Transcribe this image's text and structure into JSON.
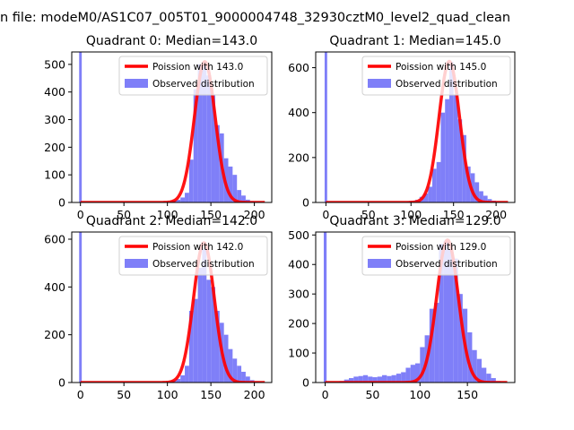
{
  "figure": {
    "suptitle": "n file: modeM0/AS1C07_005T01_9000004748_32930cztM0_level2_quad_clean"
  },
  "colors": {
    "bar": "#7f7ff8",
    "fit_line": "#ff0000",
    "axes": "#000000",
    "background": "#ffffff"
  },
  "chart_data": [
    {
      "type": "bar",
      "title": "Quadrant 0: Median=143.0",
      "xlim": [
        -10,
        220
      ],
      "ylim": [
        0,
        545
      ],
      "xticks": [
        0,
        50,
        100,
        150,
        200
      ],
      "yticks": [
        0,
        100,
        200,
        300,
        400,
        500
      ],
      "bin_width": 5,
      "zero_bin_count": 545,
      "legend": [
        "Poission with 143.0",
        "Observed distribution"
      ],
      "bins": [
        [
          85,
          1
        ],
        [
          90,
          2
        ],
        [
          95,
          3
        ],
        [
          100,
          5
        ],
        [
          105,
          8
        ],
        [
          110,
          10
        ],
        [
          115,
          18
        ],
        [
          120,
          35
        ],
        [
          125,
          155
        ],
        [
          130,
          410
        ],
        [
          135,
          500
        ],
        [
          140,
          510
        ],
        [
          145,
          460
        ],
        [
          150,
          390
        ],
        [
          155,
          280
        ],
        [
          160,
          250
        ],
        [
          165,
          160
        ],
        [
          170,
          130
        ],
        [
          175,
          100
        ],
        [
          180,
          45
        ],
        [
          185,
          25
        ],
        [
          190,
          10
        ],
        [
          195,
          5
        ],
        [
          200,
          2
        ],
        [
          205,
          1
        ]
      ],
      "fit": {
        "mean": 143.0,
        "peak": 510
      }
    },
    {
      "type": "bar",
      "title": "Quadrant 1: Median=145.0",
      "xlim": [
        -12,
        222
      ],
      "ylim": [
        0,
        670
      ],
      "xticks": [
        0,
        50,
        100,
        150,
        200
      ],
      "yticks": [
        0,
        200,
        400,
        600
      ],
      "bin_width": 5,
      "zero_bin_count": 670,
      "legend": [
        "Poission with 145.0",
        "Observed distribution"
      ],
      "bins": [
        [
          90,
          2
        ],
        [
          95,
          5
        ],
        [
          100,
          8
        ],
        [
          105,
          12
        ],
        [
          110,
          25
        ],
        [
          115,
          40
        ],
        [
          120,
          70
        ],
        [
          125,
          150
        ],
        [
          130,
          180
        ],
        [
          135,
          400
        ],
        [
          140,
          460
        ],
        [
          145,
          625
        ],
        [
          150,
          480
        ],
        [
          155,
          370
        ],
        [
          160,
          300
        ],
        [
          165,
          160
        ],
        [
          170,
          130
        ],
        [
          175,
          90
        ],
        [
          180,
          50
        ],
        [
          185,
          30
        ],
        [
          190,
          15
        ],
        [
          195,
          8
        ],
        [
          200,
          4
        ],
        [
          205,
          2
        ],
        [
          210,
          1
        ]
      ],
      "fit": {
        "mean": 145.0,
        "peak": 628
      }
    },
    {
      "type": "bar",
      "title": "Quadrant 2: Median=142.0",
      "xlim": [
        -10,
        220
      ],
      "ylim": [
        0,
        630
      ],
      "xticks": [
        0,
        50,
        100,
        150,
        200
      ],
      "yticks": [
        0,
        200,
        400,
        600
      ],
      "bin_width": 5,
      "zero_bin_count": 630,
      "legend": [
        "Poission with 142.0",
        "Observed distribution"
      ],
      "bins": [
        [
          100,
          3
        ],
        [
          105,
          10
        ],
        [
          110,
          15
        ],
        [
          115,
          30
        ],
        [
          120,
          70
        ],
        [
          125,
          300
        ],
        [
          130,
          350
        ],
        [
          135,
          480
        ],
        [
          140,
          560
        ],
        [
          145,
          430
        ],
        [
          150,
          400
        ],
        [
          155,
          300
        ],
        [
          160,
          250
        ],
        [
          165,
          200
        ],
        [
          170,
          140
        ],
        [
          175,
          100
        ],
        [
          180,
          70
        ],
        [
          185,
          45
        ],
        [
          190,
          25
        ],
        [
          195,
          10
        ],
        [
          200,
          5
        ],
        [
          205,
          2
        ],
        [
          210,
          1
        ]
      ],
      "fit": {
        "mean": 142.0,
        "peak": 585
      }
    },
    {
      "type": "bar",
      "title": "Quadrant 3: Median=129.0",
      "xlim": [
        -10,
        200
      ],
      "ylim": [
        0,
        510
      ],
      "xticks": [
        0,
        50,
        100,
        150
      ],
      "yticks": [
        0,
        100,
        200,
        300,
        400,
        500
      ],
      "bin_width": 5,
      "zero_bin_count": 510,
      "legend": [
        "Poission with 129.0",
        "Observed distribution"
      ],
      "bins": [
        [
          15,
          5
        ],
        [
          20,
          10
        ],
        [
          25,
          15
        ],
        [
          30,
          20
        ],
        [
          35,
          22
        ],
        [
          40,
          25
        ],
        [
          45,
          20
        ],
        [
          50,
          18
        ],
        [
          55,
          20
        ],
        [
          60,
          25
        ],
        [
          65,
          22
        ],
        [
          70,
          25
        ],
        [
          75,
          30
        ],
        [
          80,
          35
        ],
        [
          85,
          50
        ],
        [
          90,
          60
        ],
        [
          95,
          65
        ],
        [
          100,
          120
        ],
        [
          105,
          160
        ],
        [
          110,
          250
        ],
        [
          115,
          270
        ],
        [
          120,
          470
        ],
        [
          125,
          480
        ],
        [
          130,
          450
        ],
        [
          135,
          420
        ],
        [
          140,
          300
        ],
        [
          145,
          250
        ],
        [
          150,
          170
        ],
        [
          155,
          110
        ],
        [
          160,
          80
        ],
        [
          165,
          50
        ],
        [
          170,
          30
        ],
        [
          175,
          15
        ],
        [
          180,
          5
        ]
      ],
      "fit": {
        "mean": 129.0,
        "peak": 483
      }
    }
  ]
}
